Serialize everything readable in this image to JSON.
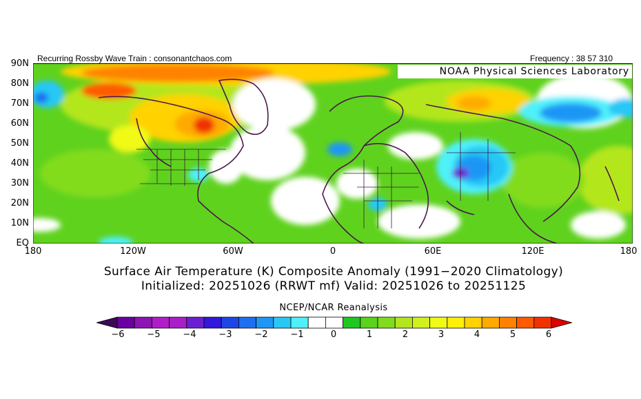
{
  "header": {
    "left_text": "Recurring Rossby Wave Train : consonantchaos.com",
    "right_text": "Frequency : 38 57 310",
    "lab_banner": "NOAA Physical Sciences Laboratory"
  },
  "map": {
    "lat_labels": [
      "90N",
      "80N",
      "70N",
      "60N",
      "50N",
      "40N",
      "30N",
      "20N",
      "10N",
      "EQ"
    ],
    "lon_labels": [
      "180",
      "120W",
      "60W",
      "0",
      "60E",
      "120E",
      "180"
    ],
    "land_color": "#5fd21e",
    "near_zero_color": "#ffffff"
  },
  "titles": {
    "line1": "Surface Air Temperature (K) Composite Anomaly (1991−2020 Climatology)",
    "line2": "Initialized: 20251026 (RRWT mf) Valid: 20251026 to 20251125"
  },
  "colorbar": {
    "title": "NCEP/NCAR Reanalysis",
    "ticks": [
      "−6",
      "−5",
      "−4",
      "−3",
      "−2",
      "−1",
      "0",
      "1",
      "2",
      "3",
      "4",
      "5",
      "6"
    ],
    "colors": [
      "#3c0a55",
      "#6a00a0",
      "#8c14b4",
      "#b01ec8",
      "#a81ec8",
      "#6e1ed2",
      "#3218dc",
      "#1e46e6",
      "#1e6ef0",
      "#1e96f5",
      "#28c8f5",
      "#50f0fa",
      "#ffffff",
      "#ffffff",
      "#1ec81e",
      "#5ad21e",
      "#82dc1e",
      "#b4e61e",
      "#d2f01e",
      "#f0fa14",
      "#fff00a",
      "#ffd200",
      "#ffaa00",
      "#ff8200",
      "#ff5a00",
      "#f03200",
      "#dc0000"
    ]
  }
}
